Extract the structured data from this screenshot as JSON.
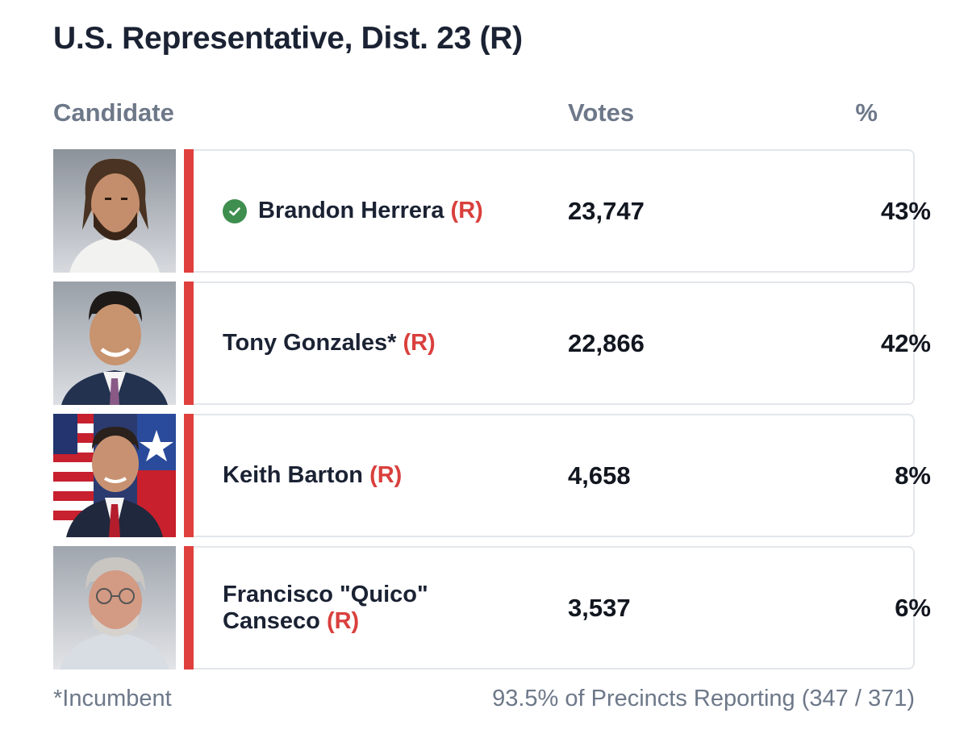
{
  "race": {
    "title": "U.S. Representative, Dist. 23 (R)"
  },
  "headers": {
    "candidate": "Candidate",
    "votes": "Votes",
    "percent": "%"
  },
  "candidates": [
    {
      "name": "Brandon Herrera",
      "party": "(R)",
      "votes": "23,747",
      "percent": "43%",
      "winner": true
    },
    {
      "name": "Tony Gonzales*",
      "party": "(R)",
      "votes": "22,866",
      "percent": "42%",
      "winner": false
    },
    {
      "name": "Keith Barton",
      "party": "(R)",
      "votes": "4,658",
      "percent": "8%",
      "winner": false
    },
    {
      "name": "Francisco \"Quico\" Canseco",
      "party": "(R)",
      "votes": "3,537",
      "percent": "6%",
      "winner": false
    }
  ],
  "footer": {
    "note": "*Incumbent",
    "reporting": "93.5% of Precincts Reporting",
    "reporting_count": "(347 / 371)"
  },
  "colors": {
    "party_republican": "#e0403d",
    "winner_check": "#3e8e4f",
    "header_text": "#6d7889",
    "title_text": "#1a2233"
  }
}
